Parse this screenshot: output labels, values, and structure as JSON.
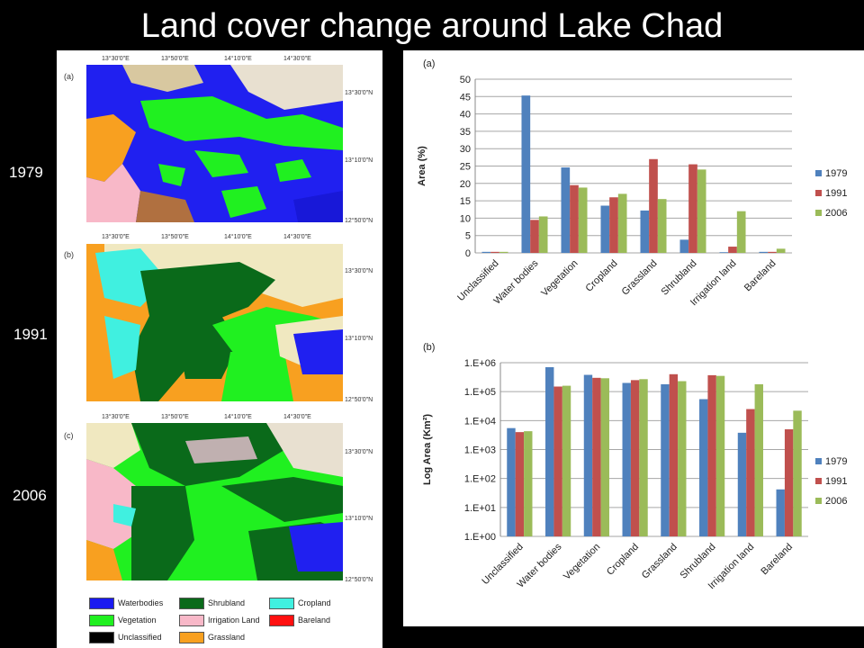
{
  "title": "Land cover change around Lake Chad",
  "years": [
    "1979",
    "1991",
    "2006"
  ],
  "maps": [
    {
      "letter": "(a)",
      "year": "1979"
    },
    {
      "letter": "(b)",
      "year": "1991"
    },
    {
      "letter": "(c)",
      "year": "2006"
    }
  ],
  "map_coords": {
    "lon": [
      "13°30'0\"E",
      "13°50'0\"E",
      "14°10'0\"E",
      "14°30'0\"E"
    ],
    "lat": [
      "13°30'0\"N",
      "13°10'0\"N",
      "12°50'0\"N"
    ]
  },
  "map_legend": [
    {
      "label": "Waterbodies",
      "color": "#1a1af0"
    },
    {
      "label": "Shrubland",
      "color": "#0a6a1a"
    },
    {
      "label": "Cropland",
      "color": "#40f0e0"
    },
    {
      "label": "Vegetation",
      "color": "#20f020"
    },
    {
      "label": "Irrigation Land",
      "color": "#f8b8c8"
    },
    {
      "label": "Bareland",
      "color": "#ff1010"
    },
    {
      "label": "Unclassified",
      "color": "#000000"
    },
    {
      "label": "Grassland",
      "color": "#f8a020"
    }
  ],
  "chart_data": [
    {
      "type": "bar",
      "panel_label": "(a)",
      "categories": [
        "Unclassified",
        "Water bodies",
        "Vegetation",
        "Cropland",
        "Grassland",
        "Shrubland",
        "Irrigation land",
        "Bareland"
      ],
      "series": [
        {
          "name": "1979",
          "color": "#4f81bd",
          "values": [
            0.3,
            45.3,
            24.6,
            13.6,
            12.2,
            3.8,
            0.2,
            0.3
          ]
        },
        {
          "name": "1991",
          "color": "#c0504d",
          "values": [
            0.3,
            9.5,
            19.5,
            16.0,
            27.0,
            25.5,
            1.8,
            0.3
          ]
        },
        {
          "name": "2006",
          "color": "#9bbb59",
          "values": [
            0.3,
            10.5,
            18.8,
            17.0,
            15.5,
            24.0,
            12.0,
            1.2
          ]
        }
      ],
      "ylabel": "Area (%)",
      "ylim": [
        0,
        50
      ],
      "yticks": [
        "0",
        "5",
        "10",
        "15",
        "20",
        "25",
        "30",
        "35",
        "40",
        "45",
        "50"
      ],
      "grid": true,
      "legend": "right"
    },
    {
      "type": "bar",
      "panel_label": "(b)",
      "scale": "log",
      "categories": [
        "Unclassified",
        "Water bodies",
        "Vegetation",
        "Cropland",
        "Grassland",
        "Shrubland",
        "Irrigation land",
        "Bareland"
      ],
      "series": [
        {
          "name": "1979",
          "color": "#4f81bd",
          "values": [
            5500,
            700000,
            380000,
            200000,
            180000,
            55000,
            3800,
            42
          ]
        },
        {
          "name": "1991",
          "color": "#c0504d",
          "values": [
            4000,
            150000,
            300000,
            250000,
            400000,
            370000,
            25000,
            5000
          ]
        },
        {
          "name": "2006",
          "color": "#9bbb59",
          "values": [
            4300,
            160000,
            290000,
            270000,
            230000,
            350000,
            180000,
            22000
          ]
        }
      ],
      "ylabel": "Log Area (Km²)",
      "ylim": [
        1,
        1000000
      ],
      "yticks": [
        "1.E+00",
        "1.E+01",
        "1.E+02",
        "1.E+03",
        "1.E+04",
        "1.E+05",
        "1.E+06"
      ],
      "grid": true,
      "legend": "right"
    }
  ]
}
